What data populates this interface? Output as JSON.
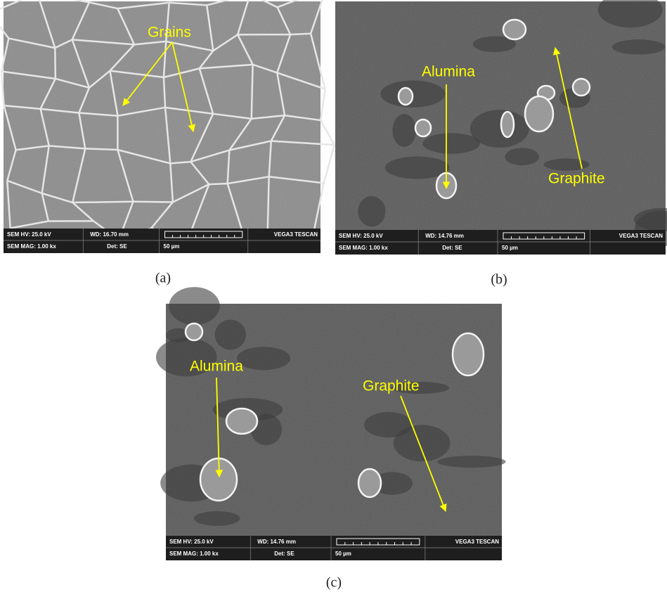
{
  "panels": [
    {
      "caption": "(a)",
      "labels": [
        "Grains"
      ],
      "info": {
        "hv": "SEM HV: 25.0 kV",
        "wd": "WD: 16.70 mm",
        "vendor": "VEGA3 TESCAN",
        "mag": "SEM MAG: 1.00 kx",
        "det": "Det: SE",
        "scale": "50 µm"
      }
    },
    {
      "caption": "(b)",
      "labels": [
        "Alumina",
        "Graphite"
      ],
      "info": {
        "hv": "SEM HV: 25.0 kV",
        "wd": "WD: 14.76 mm",
        "vendor": "VEGA3 TESCAN",
        "mag": "SEM MAG: 1.00 kx",
        "det": "Det: SE",
        "scale": "50 µm"
      }
    },
    {
      "caption": "(c)",
      "labels": [
        "Alumina",
        "Graphite"
      ],
      "info": {
        "hv": "SEM HV: 25.0 kV",
        "wd": "WD: 14.76 mm",
        "vendor": "VEGA3 TESCAN",
        "mag": "SEM MAG: 1.00 kx",
        "det": "Det: SE",
        "scale": "50 µm"
      }
    }
  ]
}
